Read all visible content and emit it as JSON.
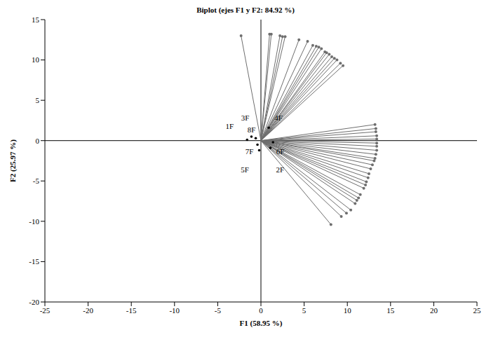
{
  "chart_data": {
    "type": "biplot",
    "title": "Biplot (ejes F1 y F2: 84.92 %)",
    "x_label": "F1 (58.95 %)",
    "y_label": "F2 (25.97 %)",
    "xlim": [
      -25,
      25
    ],
    "xticks": [
      -25,
      -20,
      -15,
      -10,
      -5,
      0,
      5,
      10,
      15,
      20,
      25
    ],
    "ylim": [
      -20,
      15
    ],
    "yticks": [
      -20,
      -15,
      -10,
      -5,
      0,
      5,
      10,
      15
    ],
    "grid": false,
    "series": [
      {
        "type": "vector",
        "color": "#6e6e6e",
        "marker": "circle",
        "x": [
          -2.3,
          1.0,
          1.2,
          2.2,
          2.5,
          2.8,
          4.4,
          5.4,
          6.0,
          6.4,
          6.7,
          7.0,
          7.4,
          7.6,
          7.9,
          8.2,
          8.5,
          8.8,
          9.2,
          9.5,
          13.2,
          13.3,
          13.3,
          13.4,
          13.4,
          13.4,
          13.4,
          13.4,
          13.3,
          13.2,
          13.1,
          12.9,
          12.7,
          12.5,
          12.4,
          12.2,
          12.1,
          11.9,
          11.5,
          11.3,
          11.1,
          10.9,
          10.4,
          9.9,
          9.3,
          8.1
        ],
        "y": [
          13.0,
          13.2,
          13.2,
          13.0,
          12.9,
          12.9,
          12.5,
          12.3,
          11.8,
          11.7,
          11.6,
          11.4,
          11.0,
          10.9,
          10.7,
          10.4,
          10.2,
          10.0,
          9.6,
          9.3,
          2.0,
          1.5,
          1.1,
          0.6,
          0.2,
          -0.3,
          -0.7,
          -1.2,
          -1.7,
          -2.2,
          -2.5,
          -3.0,
          -3.5,
          -4.1,
          -4.6,
          -5.1,
          -5.5,
          -5.9,
          -6.7,
          -7.1,
          -7.4,
          -7.8,
          -8.6,
          -9.0,
          -9.4,
          -10.4
        ]
      },
      {
        "type": "scatter",
        "color": "#000000",
        "marker": "circle",
        "labels": [
          "1F",
          "3F",
          "8F",
          "7F",
          "5F",
          "6F",
          "2F",
          "4F"
        ],
        "x": [
          -1.6,
          -1.1,
          -0.6,
          -0.2,
          -0.4,
          1.1,
          1.4,
          0.9
        ],
        "y": [
          0.1,
          0.5,
          0.3,
          -1.2,
          -0.5,
          -0.9,
          -0.2,
          1.6
        ]
      }
    ]
  }
}
